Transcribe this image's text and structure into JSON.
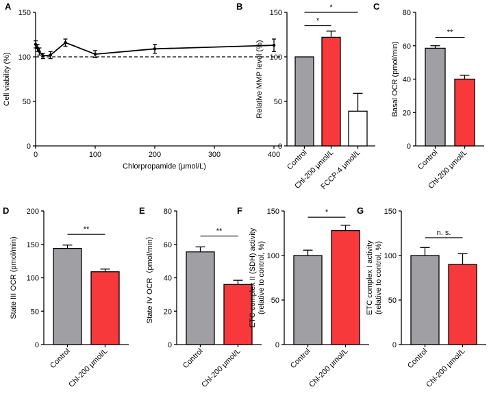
{
  "colors": {
    "gray": "#a0a0a4",
    "red": "#f8393c",
    "white": "#ffffff",
    "axis": "#000000"
  },
  "chart_data": [
    {
      "id": "A",
      "panel_label": "A",
      "type": "line",
      "title": "",
      "xlabel": "Chlorpropamide (μmol/L)",
      "ylabel": "Cell viability (%)",
      "xlim": [
        0,
        420
      ],
      "ylim": [
        0,
        150
      ],
      "xticks": [
        "0",
        "100",
        "200",
        "300",
        "400"
      ],
      "yticks": [
        "0",
        "50",
        "100",
        "150"
      ],
      "x": [
        0,
        3.125,
        6.25,
        12.5,
        25,
        50,
        100,
        200,
        400
      ],
      "series": [
        {
          "name": "Cell viability",
          "values": [
            114,
            110,
            106,
            101,
            102,
            116,
            103,
            109,
            113
          ],
          "errors": [
            4,
            4,
            4,
            3,
            4,
            4,
            4,
            5,
            7
          ]
        }
      ],
      "reference_line": {
        "y": 100,
        "style": "dashed"
      }
    },
    {
      "id": "B",
      "panel_label": "B",
      "type": "bar",
      "ylabel": "Relative MMP level (%)",
      "ylim": [
        0,
        150
      ],
      "yticks": [
        "0",
        "50",
        "100",
        "150"
      ],
      "categories": [
        "Control",
        "Chl-200 μmol/L",
        "FCCP-4 μmol/L"
      ],
      "values": [
        100,
        122,
        39
      ],
      "errors": [
        0,
        7,
        20
      ],
      "bar_colors": [
        "gray",
        "red",
        "white"
      ],
      "significance": [
        {
          "from": 0,
          "to": 1,
          "label": "*",
          "at": 135
        },
        {
          "from": 0,
          "to": 2,
          "label": "*",
          "at": 150
        }
      ]
    },
    {
      "id": "C",
      "panel_label": "C",
      "type": "bar",
      "ylabel": "Basal OCR (pmol/min)",
      "ylim": [
        0,
        80
      ],
      "yticks": [
        "0",
        "20",
        "40",
        "60",
        "80"
      ],
      "categories": [
        "Control",
        "Chl-200 μmol/L"
      ],
      "values": [
        58.5,
        40
      ],
      "errors": [
        1.5,
        2.3
      ],
      "bar_colors": [
        "gray",
        "red"
      ],
      "significance": [
        {
          "from": 0,
          "to": 1,
          "label": "**",
          "at": 65
        }
      ]
    },
    {
      "id": "D",
      "panel_label": "D",
      "type": "bar",
      "ylabel": "State III OCR (pmol/min)",
      "ylim": [
        0,
        200
      ],
      "yticks": [
        "0",
        "50",
        "100",
        "150",
        "200"
      ],
      "categories": [
        "Control",
        "Chl-200 μmol/L"
      ],
      "values": [
        144,
        109
      ],
      "errors": [
        5,
        4
      ],
      "bar_colors": [
        "gray",
        "red"
      ],
      "significance": [
        {
          "from": 0,
          "to": 1,
          "label": "**",
          "at": 165
        }
      ]
    },
    {
      "id": "E",
      "panel_label": "E",
      "type": "bar",
      "ylabel": "State IV OCR（pmol/min）",
      "ylim": [
        0,
        80
      ],
      "yticks": [
        "0",
        "20",
        "40",
        "60",
        "80"
      ],
      "categories": [
        "Control",
        "Chl-200 μmol/L"
      ],
      "values": [
        55.5,
        36
      ],
      "errors": [
        3,
        2.5
      ],
      "bar_colors": [
        "gray",
        "red"
      ],
      "significance": [
        {
          "from": 0,
          "to": 1,
          "label": "**",
          "at": 65
        }
      ]
    },
    {
      "id": "F",
      "panel_label": "F",
      "type": "bar",
      "ylabel": "ETC complex II (SDH) activity",
      "ylabel2": "(relative to control, %)",
      "ylim": [
        0,
        150
      ],
      "yticks": [
        "0",
        "50",
        "100",
        "150"
      ],
      "categories": [
        "Control",
        "Chl-200 μmol/L"
      ],
      "values": [
        100,
        128
      ],
      "errors": [
        6,
        6
      ],
      "bar_colors": [
        "gray",
        "red"
      ],
      "significance": [
        {
          "from": 0,
          "to": 1,
          "label": "*",
          "at": 143
        }
      ]
    },
    {
      "id": "G",
      "panel_label": "G",
      "type": "bar",
      "ylabel": "ETC complex I activity",
      "ylabel2": "(relative to control, %)",
      "ylim": [
        0,
        150
      ],
      "yticks": [
        "0",
        "50",
        "100",
        "150"
      ],
      "categories": [
        "Control",
        "Chl-200 μmol/L"
      ],
      "values": [
        100,
        90
      ],
      "errors": [
        9,
        12
      ],
      "bar_colors": [
        "gray",
        "red"
      ],
      "significance": [
        {
          "from": 0,
          "to": 1,
          "label": "n. s.",
          "at": 120
        }
      ]
    }
  ]
}
